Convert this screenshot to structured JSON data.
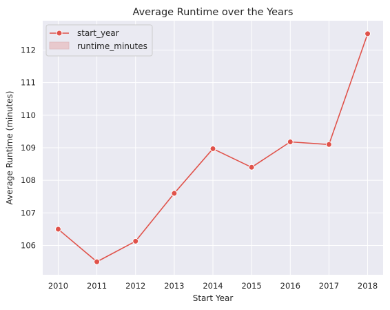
{
  "chart_data": {
    "type": "line",
    "title": "Average Runtime over the Years",
    "xlabel": "Start Year",
    "ylabel": "Average Runtime (minutes)",
    "x": [
      2010,
      2011,
      2012,
      2013,
      2014,
      2015,
      2016,
      2017,
      2018
    ],
    "series": [
      {
        "name": "start_year",
        "values": [
          106.5,
          105.5,
          106.13,
          107.6,
          108.97,
          108.4,
          109.18,
          109.1,
          112.5
        ]
      }
    ],
    "legend_entries": [
      "start_year",
      "runtime_minutes"
    ],
    "legend_placement": "top-left",
    "y_ticks": [
      106,
      107,
      108,
      109,
      110,
      111,
      112
    ],
    "x_ticks": [
      2010,
      2011,
      2012,
      2013,
      2014,
      2015,
      2016,
      2017,
      2018
    ],
    "ylim": [
      105.1,
      112.9
    ],
    "xlim": [
      2009.6,
      2018.4
    ],
    "grid": true,
    "colors": {
      "line": "#e0524a",
      "band": "#e8c9cd",
      "background": "#eaeaf2",
      "grid": "#ffffff"
    }
  }
}
